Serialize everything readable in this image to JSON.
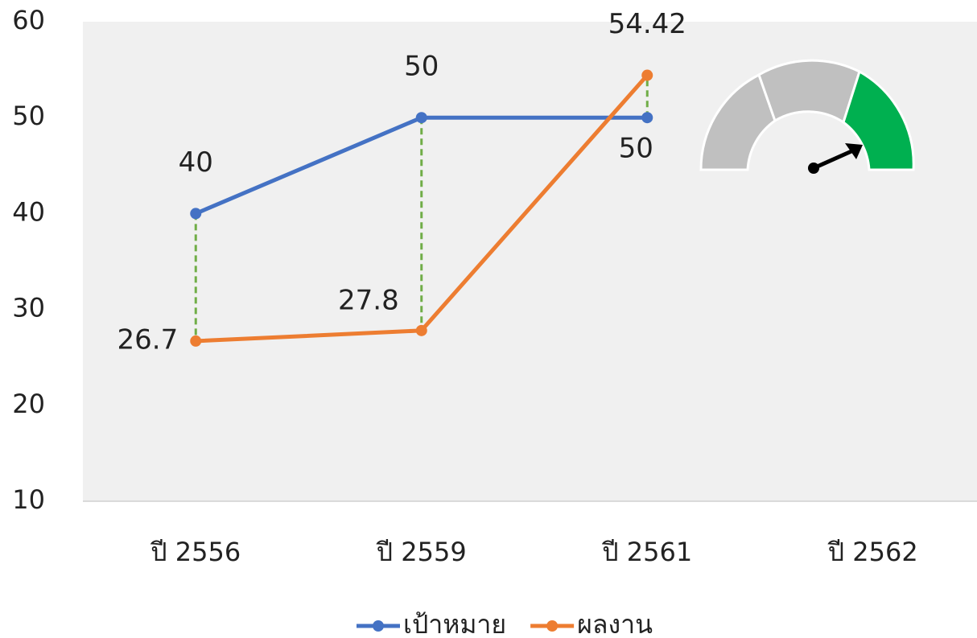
{
  "chart_data": {
    "type": "line",
    "categories": [
      "ปี 2556",
      "ปี 2559",
      "ปี 2561",
      "ปี 2562"
    ],
    "series": [
      {
        "name": "เป้าหมาย",
        "color": "#4472c4",
        "values": [
          40,
          50,
          50,
          null
        ]
      },
      {
        "name": "ผลงาน",
        "color": "#ed7d31",
        "values": [
          26.7,
          27.8,
          54.42,
          null
        ]
      }
    ],
    "ylim": [
      10,
      60
    ],
    "yticks": [
      10,
      20,
      30,
      40,
      50,
      60
    ],
    "drop_line_color": "#70ad47",
    "legend": "bottom"
  }
}
